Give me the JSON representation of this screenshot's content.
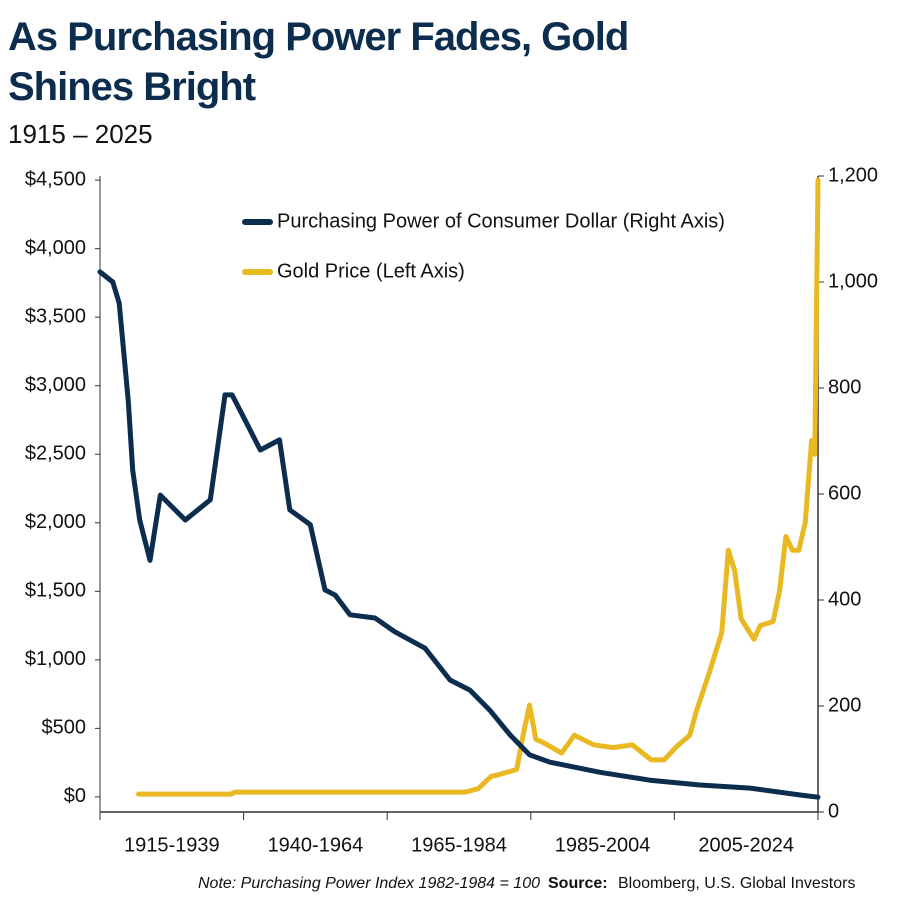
{
  "chart_data": {
    "type": "line",
    "title": "As Purchasing Power Fades, Gold Shines Bright",
    "subtitle": "1915 – 2025",
    "note": "Note: Purchasing Power Index 1982-1984 = 100",
    "source_label": "Source:",
    "source": "Bloomberg, U.S. Global Investors",
    "categories": [
      "1915-1939",
      "1940-1964",
      "1965-1984",
      "1985-2004",
      "2005-2024"
    ],
    "xlim": [
      1913,
      2025
    ],
    "ylim": [
      -110,
      4530
    ],
    "yticks": [
      {
        "value": 0,
        "label": "$0"
      },
      {
        "value": 500,
        "label": "$500"
      },
      {
        "value": 1000,
        "label": "$1,000"
      },
      {
        "value": 1500,
        "label": "$1,500"
      },
      {
        "value": 2000,
        "label": "$2,000"
      },
      {
        "value": 2500,
        "label": "$2,500"
      },
      {
        "value": 3000,
        "label": "$3,000"
      },
      {
        "value": 3500,
        "label": "$3,500"
      },
      {
        "value": 4000,
        "label": "$4,000"
      },
      {
        "value": 4500,
        "label": "$4,500"
      }
    ],
    "y2lim": [
      0,
      1200
    ],
    "y2ticks": [
      0,
      200,
      400,
      600,
      800,
      {
        "value": 1000,
        "label": "1,000"
      },
      {
        "value": 1200,
        "label": "1,200"
      }
    ],
    "series": [
      {
        "name": "Purchasing Power of Consumer Dollar (Right Axis)",
        "color": "#0c2d4e",
        "axis": "y2",
        "x": [
          1913,
          1915,
          1916,
          1917.4,
          1918.1,
          1919.2,
          1920.8,
          1922.4,
          1926.3,
          1930.2,
          1932.5,
          1933.6,
          1935.6,
          1938,
          1941,
          1942.6,
          1945.8,
          1948.1,
          1949.7,
          1952,
          1955.9,
          1959,
          1963.7,
          1967.6,
          1970.7,
          1973.8,
          1977,
          1980,
          1983.2,
          1991,
          1998.8,
          2006.6,
          2014.4,
          2022.2,
          2025
        ],
        "values": [
          1019,
          1000,
          960,
          777,
          645,
          551,
          475,
          598,
          551,
          589,
          787,
          787,
          740,
          683,
          702,
          570,
          542,
          419,
          409,
          372,
          366,
          340,
          309,
          249,
          230,
          192,
          145,
          108,
          94,
          75,
          60,
          51,
          45,
          32,
          28
        ]
      },
      {
        "name": "Gold Price (Left Axis)",
        "color": "#e8b923",
        "x": [
          1919,
          1933.5,
          1934,
          1970,
          1972,
          1974,
          1975,
          1978,
          1979,
          1980,
          1981,
          1982,
          1985,
          1987,
          1990,
          1993,
          1996,
          1999,
          2001,
          2003,
          2005,
          2006,
          2008,
          2010,
          2011,
          2012,
          2013,
          2015,
          2016,
          2018,
          2019,
          2020,
          2021,
          2022,
          2023,
          2024,
          2024.5,
          2025
        ],
        "values": [
          20.67,
          20.67,
          35,
          35,
          60,
          150,
          160,
          200,
          450,
          670,
          420,
          400,
          320,
          450,
          380,
          360,
          380,
          270,
          270,
          370,
          450,
          620,
          900,
          1200,
          1800,
          1650,
          1300,
          1150,
          1250,
          1280,
          1500,
          1900,
          1800,
          1800,
          2000,
          2600,
          2500,
          4500
        ]
      }
    ]
  }
}
